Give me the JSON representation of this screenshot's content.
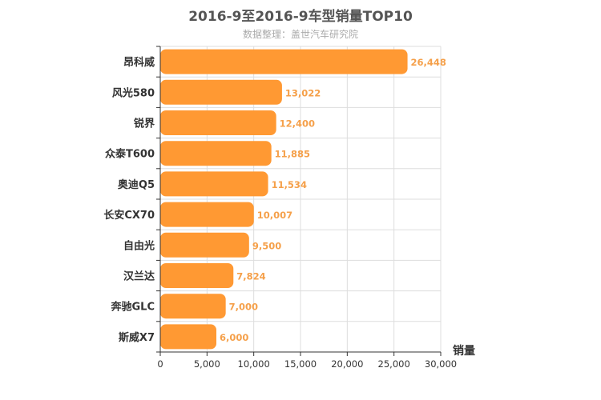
{
  "title": "2016-9至2016-9车型销量TOP10",
  "subtitle": "数据整理：盖世汽车研究院",
  "colors": {
    "bar": "#ff9933",
    "value_label": "#f5a04a",
    "grid": "#dddddd"
  },
  "chart_data": {
    "type": "bar",
    "orientation": "horizontal",
    "title": "2016-9至2016-9车型销量TOP10",
    "subtitle": "数据整理：盖世汽车研究院",
    "xlabel": "销量",
    "ylabel": "",
    "xlim": [
      0,
      30000
    ],
    "x_ticks": [
      0,
      5000,
      10000,
      15000,
      20000,
      25000,
      30000
    ],
    "x_tick_labels": [
      "0",
      "5,000",
      "10,000",
      "15,000",
      "20,000",
      "25,000",
      "30,000"
    ],
    "grid": true,
    "categories": [
      "昂科威",
      "风光580",
      "锐界",
      "众泰T600",
      "奥迪Q5",
      "长安CX70",
      "自由光",
      "汉兰达",
      "奔驰GLC",
      "斯威X7"
    ],
    "values": [
      26448,
      13022,
      12400,
      11885,
      11534,
      10007,
      9500,
      7824,
      7000,
      6000
    ],
    "value_labels": [
      "26,448",
      "13,022",
      "12,400",
      "11,885",
      "11,534",
      "10,007",
      "9,500",
      "7,824",
      "7,000",
      "6,000"
    ]
  }
}
